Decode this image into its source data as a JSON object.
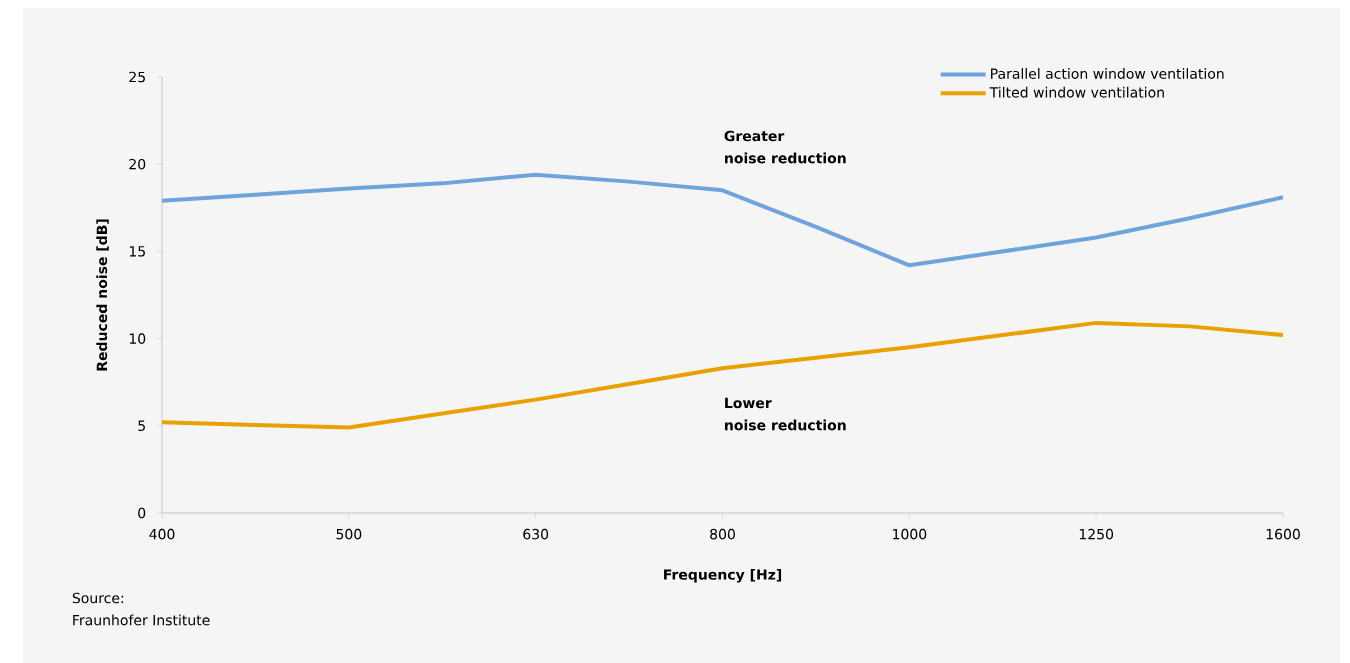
{
  "chart_data": {
    "type": "line",
    "xlabel": "Frequency [Hz]",
    "ylabel": "Reduced noise [dB]",
    "categories": [
      "400",
      null,
      "500",
      null,
      "630",
      null,
      "800",
      null,
      "1000",
      null,
      "1250",
      null,
      "1600"
    ],
    "series": [
      {
        "name": "Parallel action window ventilation",
        "color": "#6fa3dc",
        "values": [
          17.9,
          18.25,
          18.6,
          18.9,
          19.4,
          19.0,
          18.5,
          16.4,
          14.2,
          15.0,
          15.8,
          16.9,
          18.1
        ]
      },
      {
        "name": "Tilted window ventilation",
        "color": "#e9a102",
        "values": [
          5.2,
          5.05,
          4.9,
          5.7,
          6.5,
          7.4,
          8.3,
          8.9,
          9.5,
          10.2,
          10.9,
          10.7,
          10.2
        ]
      }
    ],
    "ylim": [
      0,
      25
    ],
    "yticks": [
      0,
      5,
      10,
      15,
      20,
      25
    ],
    "grid": false,
    "legend": "top right",
    "marker": "none",
    "line_style": "solid",
    "annotations": [
      "Greater",
      "noise reduction",
      "Lower",
      "noise reduction",
      "Source:",
      "Fraunhofer Institute"
    ]
  }
}
